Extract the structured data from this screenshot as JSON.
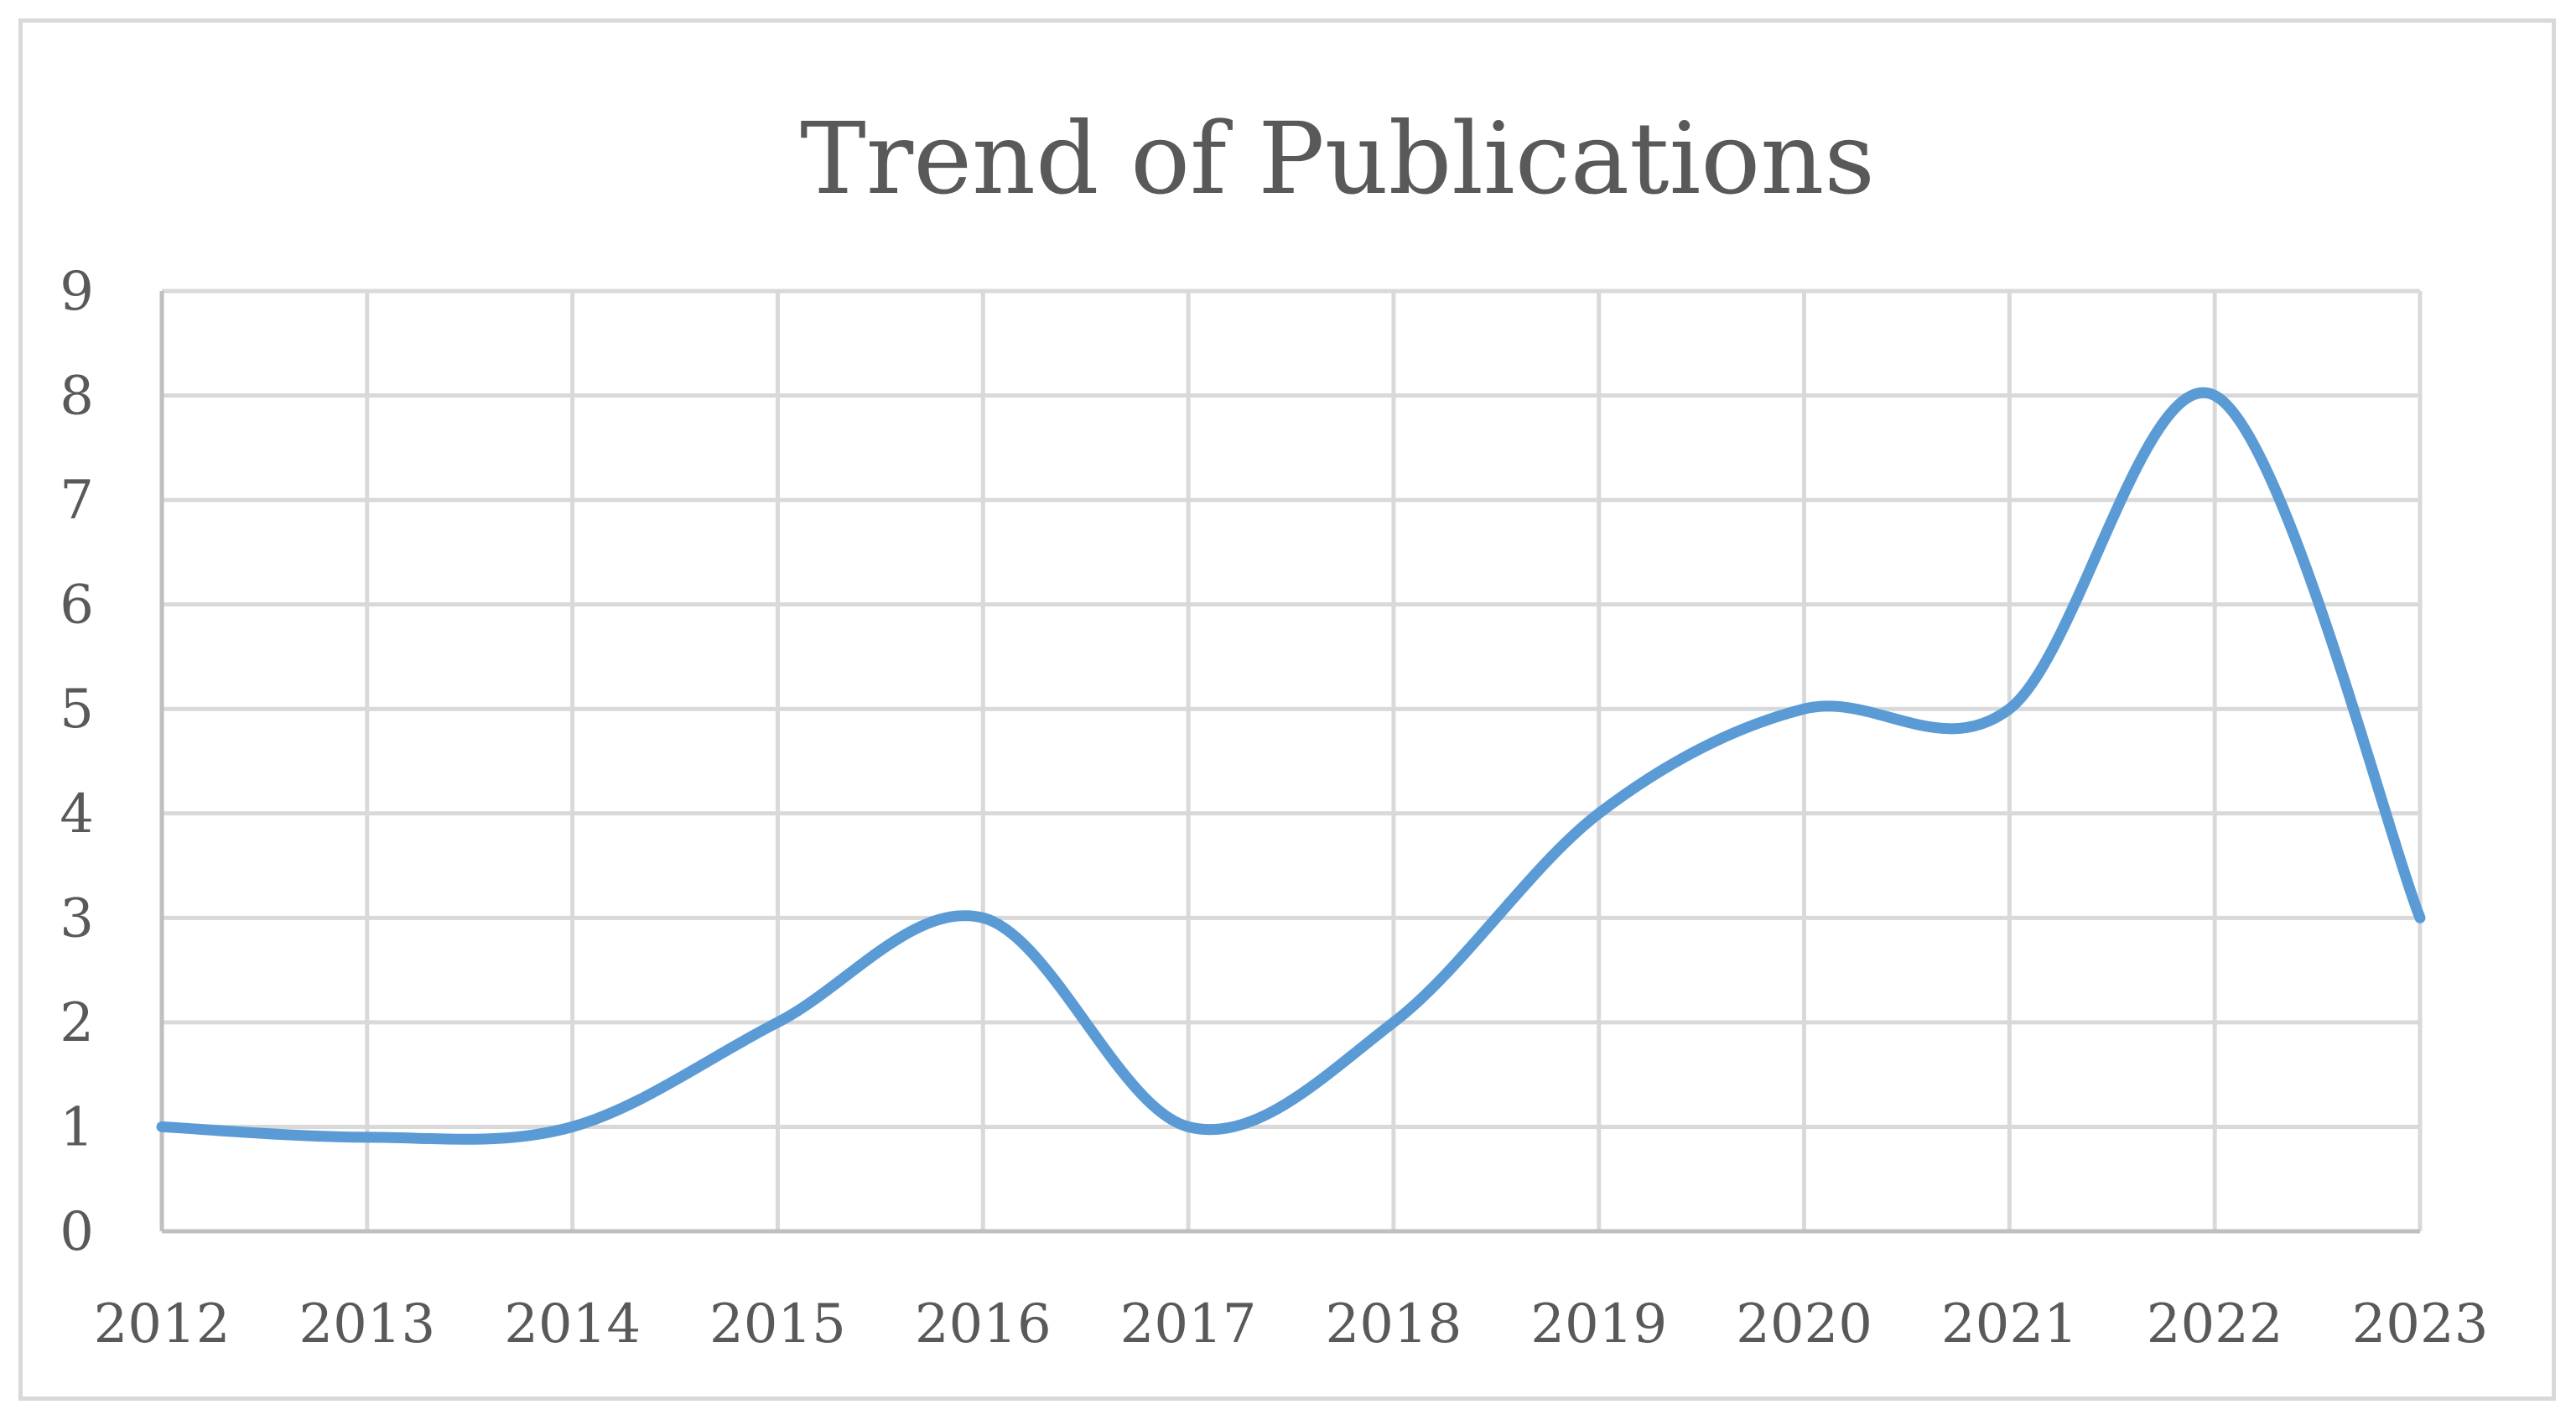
{
  "chart_data": {
    "type": "line",
    "title": "Trend of Publications",
    "xlabel": "",
    "ylabel": "",
    "x": [
      "2012",
      "2013",
      "2014",
      "2015",
      "2016",
      "2017",
      "2018",
      "2019",
      "2020",
      "2021",
      "2022",
      "2023"
    ],
    "series": [
      {
        "values": [
          1,
          0.9,
          1,
          2,
          3,
          1,
          2,
          4,
          5,
          5,
          8,
          3
        ],
        "color": "#5b9bd5"
      }
    ],
    "ylim": [
      0,
      9
    ],
    "yticks": [
      "0",
      "1",
      "2",
      "3",
      "4",
      "5",
      "6",
      "7",
      "8",
      "9"
    ],
    "grid": true,
    "smooth": true,
    "legend": "none"
  }
}
